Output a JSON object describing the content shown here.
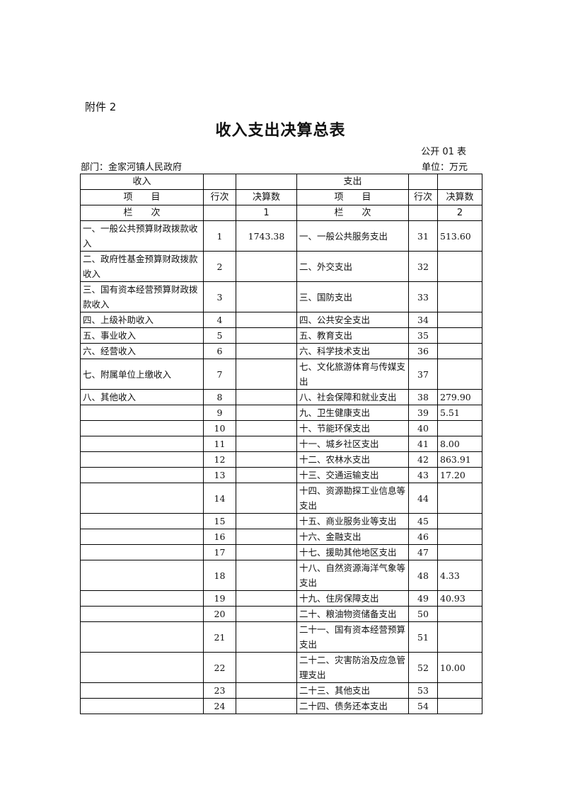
{
  "attachment_label": "附件 2",
  "title": "收入支出决算总表",
  "table_code": "公开 01 表",
  "department": "部门：金家河镇人民政府",
  "unit": "单位：万元",
  "header": {
    "income": "收入",
    "expense": "支出",
    "item": "项　　目",
    "line_no": "行次",
    "amount": "决算数",
    "column_label": "栏　　次",
    "income_col_no": "1",
    "expense_col_no": "2"
  },
  "rows": [
    {
      "income_item": "一、一般公共预算财政拨款收入",
      "income_line": "1",
      "income_amount": "1743.38",
      "expense_item": "一、一般公共服务支出",
      "expense_line": "31",
      "expense_amount": "513.60"
    },
    {
      "income_item": "二、政府性基金预算财政拨款收入",
      "income_line": "2",
      "income_amount": "",
      "expense_item": "二、外交支出",
      "expense_line": "32",
      "expense_amount": ""
    },
    {
      "income_item": "三、国有资本经营预算财政拨款收入",
      "income_line": "3",
      "income_amount": "",
      "expense_item": "三、国防支出",
      "expense_line": "33",
      "expense_amount": ""
    },
    {
      "income_item": "四、上级补助收入",
      "income_line": "4",
      "income_amount": "",
      "expense_item": "四、公共安全支出",
      "expense_line": "34",
      "expense_amount": ""
    },
    {
      "income_item": "五、事业收入",
      "income_line": "5",
      "income_amount": "",
      "expense_item": "五、教育支出",
      "expense_line": "35",
      "expense_amount": ""
    },
    {
      "income_item": "六、经营收入",
      "income_line": "6",
      "income_amount": "",
      "expense_item": "六、科学技术支出",
      "expense_line": "36",
      "expense_amount": ""
    },
    {
      "income_item": "七、附属单位上缴收入",
      "income_line": "7",
      "income_amount": "",
      "expense_item": "七、文化旅游体育与传媒支出",
      "expense_line": "37",
      "expense_amount": ""
    },
    {
      "income_item": "八、其他收入",
      "income_line": "8",
      "income_amount": "",
      "expense_item": "八、社会保障和就业支出",
      "expense_line": "38",
      "expense_amount": "279.90"
    },
    {
      "income_item": "",
      "income_line": "9",
      "income_amount": "",
      "expense_item": "九、卫生健康支出",
      "expense_line": "39",
      "expense_amount": "5.51"
    },
    {
      "income_item": "",
      "income_line": "10",
      "income_amount": "",
      "expense_item": "十、节能环保支出",
      "expense_line": "40",
      "expense_amount": ""
    },
    {
      "income_item": "",
      "income_line": "11",
      "income_amount": "",
      "expense_item": "十一、城乡社区支出",
      "expense_line": "41",
      "expense_amount": "8.00"
    },
    {
      "income_item": "",
      "income_line": "12",
      "income_amount": "",
      "expense_item": "十二、农林水支出",
      "expense_line": "42",
      "expense_amount": "863.91"
    },
    {
      "income_item": "",
      "income_line": "13",
      "income_amount": "",
      "expense_item": "十三、交通运输支出",
      "expense_line": "43",
      "expense_amount": "17.20"
    },
    {
      "income_item": "",
      "income_line": "14",
      "income_amount": "",
      "expense_item": "十四、资源勘探工业信息等支出",
      "expense_line": "44",
      "expense_amount": ""
    },
    {
      "income_item": "",
      "income_line": "15",
      "income_amount": "",
      "expense_item": "十五、商业服务业等支出",
      "expense_line": "45",
      "expense_amount": ""
    },
    {
      "income_item": "",
      "income_line": "16",
      "income_amount": "",
      "expense_item": "十六、金融支出",
      "expense_line": "46",
      "expense_amount": ""
    },
    {
      "income_item": "",
      "income_line": "17",
      "income_amount": "",
      "expense_item": "十七、援助其他地区支出",
      "expense_line": "47",
      "expense_amount": ""
    },
    {
      "income_item": "",
      "income_line": "18",
      "income_amount": "",
      "expense_item": "十八、自然资源海洋气象等支出",
      "expense_line": "48",
      "expense_amount": "4.33"
    },
    {
      "income_item": "",
      "income_line": "19",
      "income_amount": "",
      "expense_item": "十九、住房保障支出",
      "expense_line": "49",
      "expense_amount": "40.93"
    },
    {
      "income_item": "",
      "income_line": "20",
      "income_amount": "",
      "expense_item": "二十、粮油物资储备支出",
      "expense_line": "50",
      "expense_amount": ""
    },
    {
      "income_item": "",
      "income_line": "21",
      "income_amount": "",
      "expense_item": "二十一、国有资本经营预算支出",
      "expense_line": "51",
      "expense_amount": ""
    },
    {
      "income_item": "",
      "income_line": "22",
      "income_amount": "",
      "expense_item": "二十二、灾害防治及应急管理支出",
      "expense_line": "52",
      "expense_amount": "10.00"
    },
    {
      "income_item": "",
      "income_line": "23",
      "income_amount": "",
      "expense_item": "二十三、其他支出",
      "expense_line": "53",
      "expense_amount": ""
    },
    {
      "income_item": "",
      "income_line": "24",
      "income_amount": "",
      "expense_item": "二十四、债务还本支出",
      "expense_line": "54",
      "expense_amount": ""
    }
  ]
}
